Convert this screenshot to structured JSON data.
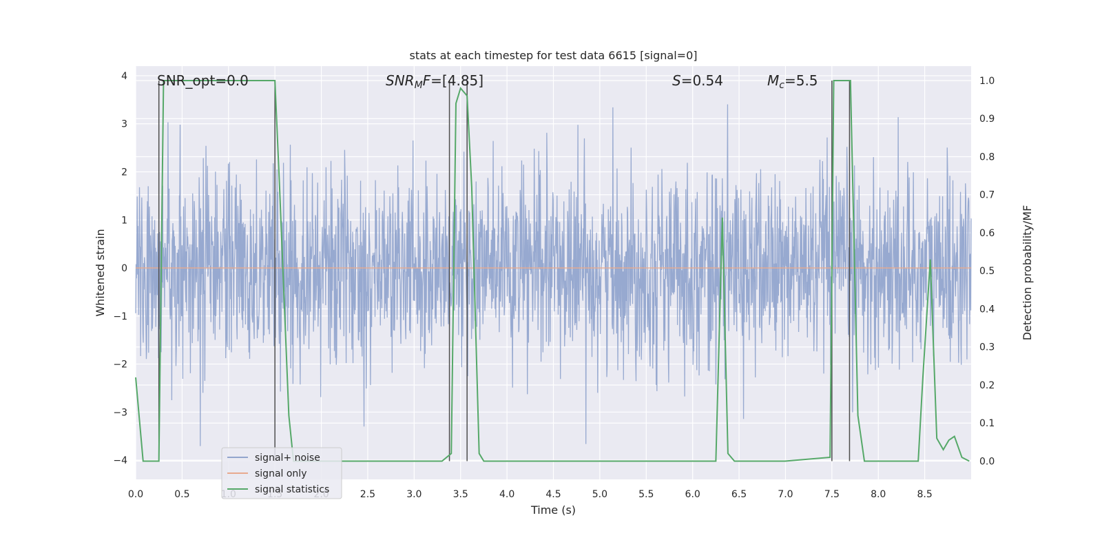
{
  "chart_data": {
    "type": "line",
    "title": "stats at each timestep for test data 6615 [signal=0]",
    "xlabel": "Time (s)",
    "ylabel_left": "Whitened strain",
    "ylabel_right": "Detection probability/MF",
    "xlim": [
      0.0,
      9.0
    ],
    "ylim_left": [
      -4.4,
      4.2
    ],
    "ylim_right": [
      -0.048,
      1.038
    ],
    "xticks": [
      "0.0",
      "0.5",
      "1.0",
      "1.5",
      "2.0",
      "2.5",
      "3.0",
      "3.5",
      "4.0",
      "4.5",
      "5.0",
      "5.5",
      "6.0",
      "6.5",
      "7.0",
      "7.5",
      "8.0",
      "8.5"
    ],
    "yticks_left": [
      "−4",
      "−3",
      "−2",
      "−1",
      "0",
      "1",
      "2",
      "3",
      "4"
    ],
    "yticks_right": [
      "0.0",
      "0.1",
      "0.2",
      "0.3",
      "0.4",
      "0.5",
      "0.6",
      "0.7",
      "0.8",
      "0.9",
      "1.0"
    ],
    "grid": true,
    "legend_position": "lower-left",
    "annotations": {
      "snr_opt": "SNR_opt=0.0",
      "snr_mf": "SNR_MF=[4.85]",
      "s_value": "S=0.54",
      "mc_value": "M_c=5.5"
    },
    "series": [
      {
        "name": "signal+ noise",
        "color": "#92a5cd",
        "noise_sigma": 1.0,
        "noise_range": [
          -4.0,
          4.0
        ]
      },
      {
        "name": "signal only",
        "color": "#e8a98d",
        "values_constant": 0.0
      },
      {
        "name": "signal statistics",
        "color": "#55a868",
        "x": [
          0.0,
          0.08,
          0.15,
          0.25,
          0.3,
          0.4,
          0.8,
          1.2,
          1.5,
          1.55,
          1.6,
          1.65,
          1.7,
          2.0,
          3.0,
          3.3,
          3.4,
          3.45,
          3.5,
          3.57,
          3.62,
          3.7,
          3.75,
          4.0,
          5.0,
          6.25,
          6.32,
          6.38,
          6.45,
          7.0,
          7.48,
          7.52,
          7.58,
          7.7,
          7.78,
          7.85,
          8.0,
          8.43,
          8.48,
          8.56,
          8.63,
          8.7,
          8.76,
          8.82,
          8.9,
          8.98
        ],
        "y": [
          0.22,
          0.0,
          0.0,
          0.0,
          1.0,
          1.0,
          1.0,
          1.0,
          1.0,
          0.72,
          0.42,
          0.12,
          0.0,
          0.0,
          0.0,
          0.0,
          0.02,
          0.94,
          0.98,
          0.96,
          0.72,
          0.02,
          0.0,
          0.0,
          0.0,
          0.0,
          0.64,
          0.02,
          0.0,
          0.0,
          0.01,
          1.0,
          1.0,
          1.0,
          0.12,
          0.0,
          0.0,
          0.0,
          0.22,
          0.53,
          0.06,
          0.03,
          0.055,
          0.065,
          0.01,
          0.0
        ]
      }
    ],
    "vertical_markers": {
      "color": "#4d4d4d",
      "x": [
        0.25,
        1.5,
        3.38,
        3.57,
        7.5,
        7.69
      ],
      "y_top_right": 1.0
    }
  }
}
